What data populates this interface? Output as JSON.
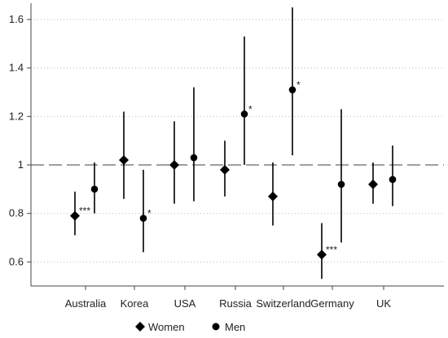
{
  "chart_data": {
    "type": "scatter",
    "subtype": "point estimates with confidence intervals",
    "categories": [
      "Australia",
      "Korea",
      "USA",
      "Russia",
      "Switzerland",
      "Germany",
      "UK"
    ],
    "ylim": [
      0.5,
      1.65
    ],
    "yticks": [
      "0.6",
      "0.8",
      "1",
      "1.2",
      "1.4",
      "1.6"
    ],
    "ytick_values": [
      0.6,
      0.8,
      1.0,
      1.2,
      1.4,
      1.6
    ],
    "reference_line": 1,
    "grid": "horizontal dotted",
    "legend_position": "bottom",
    "series": [
      {
        "name": "Women",
        "marker": "diamond",
        "values": [
          0.79,
          1.02,
          1.0,
          0.98,
          0.87,
          0.63,
          0.92
        ],
        "lower": [
          0.71,
          0.86,
          0.84,
          0.87,
          0.75,
          0.53,
          0.84
        ],
        "upper": [
          0.89,
          1.22,
          1.18,
          1.1,
          1.01,
          0.76,
          1.01
        ],
        "significance": [
          "***",
          "",
          "",
          "",
          "",
          "***",
          ""
        ]
      },
      {
        "name": "Men",
        "marker": "circle",
        "values": [
          0.9,
          0.78,
          1.03,
          1.21,
          1.31,
          0.92,
          0.94
        ],
        "lower": [
          0.8,
          0.64,
          0.85,
          1.0,
          1.04,
          0.68,
          0.83
        ],
        "upper": [
          1.01,
          0.98,
          1.32,
          1.53,
          1.65,
          1.23,
          1.08
        ],
        "significance": [
          "",
          "*",
          "",
          "*",
          "*",
          "",
          ""
        ]
      }
    ],
    "colors": {
      "marker": "#000000",
      "reference_line": "#666666",
      "grid": "#bbbbbb",
      "axis": "#444444"
    }
  },
  "legend": {
    "women_label": "Women",
    "men_label": "Men"
  }
}
